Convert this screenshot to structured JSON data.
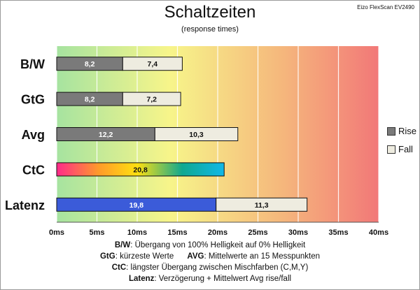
{
  "header": {
    "title": "Schaltzeiten",
    "subtitle": "(response times)",
    "monitor": "Eizo FlexScan EV2490"
  },
  "colors": {
    "rise": "#7a7a7a",
    "fall": "#eeece0",
    "latenz_rise": "#3b5bd9",
    "bg_gradient": [
      "#a6e3a0",
      "#f7f58a",
      "#f5b77c",
      "#f27878"
    ]
  },
  "chart_data": {
    "type": "bar",
    "orientation": "horizontal",
    "stacked": true,
    "title": "Schaltzeiten",
    "subtitle": "(response times)",
    "categories": [
      "B/W",
      "GtG",
      "Avg",
      "CtC",
      "Latenz"
    ],
    "series": [
      {
        "name": "Rise",
        "values": [
          8.2,
          8.2,
          12.2,
          20.8,
          19.8
        ]
      },
      {
        "name": "Fall",
        "values": [
          7.4,
          7.2,
          10.3,
          null,
          11.3
        ]
      }
    ],
    "value_labels": [
      [
        "8,2",
        "7,4"
      ],
      [
        "8,2",
        "7,2"
      ],
      [
        "12,2",
        "10,3"
      ],
      [
        "20,8",
        ""
      ],
      [
        "19,8",
        "11,3"
      ]
    ],
    "xlim": [
      0,
      40
    ],
    "x_ticks": [
      0,
      5,
      10,
      15,
      20,
      25,
      30,
      35,
      40
    ],
    "x_tick_labels": [
      "0ms",
      "5ms",
      "10ms",
      "15ms",
      "20ms",
      "25ms",
      "30ms",
      "35ms",
      "40ms"
    ],
    "grid": true,
    "legend": {
      "placement": "right",
      "entries": [
        "Rise",
        "Fall"
      ]
    }
  },
  "notes": {
    "line1_key": "B/W",
    "line1_text": ":  Übergang von 100% Helligkeit auf 0% Helligkeit",
    "line2_key": "GtG",
    "line2_text": ": kürzeste  Werte",
    "line2_key2": "AVG",
    "line2_text2": ": Mittelwerte  an 15 Messpunkten",
    "line3_key": "CtC",
    "line3_text": ": längster Übergang  zwischen Mischfarben  (C,M,Y)",
    "line4_key": "Latenz",
    "line4_text": ": Verzögerung  + Mittelwert Avg rise/fall"
  }
}
